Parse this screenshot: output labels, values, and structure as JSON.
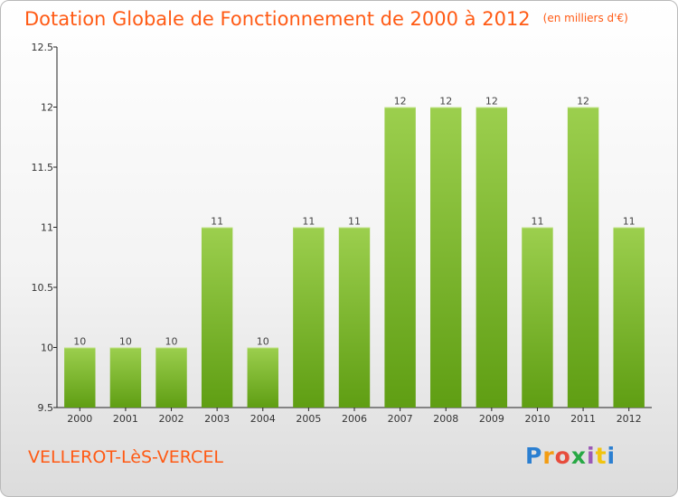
{
  "header": {
    "title": "Dotation Globale de Fonctionnement de 2000 à 2012",
    "unit": "(en milliers d'€)"
  },
  "footer": {
    "commune": "VELLEROT-LèS-VERCEL",
    "logo_text": "Proxiti"
  },
  "colors": {
    "bar_top": "#9ccf4e",
    "bar_bottom": "#5f9e13",
    "title": "#ff5a14"
  },
  "chart_data": {
    "type": "bar",
    "title": "Dotation Globale de Fonctionnement de 2000 à 2012",
    "xlabel": "",
    "ylabel": "",
    "categories": [
      "2000",
      "2001",
      "2002",
      "2003",
      "2004",
      "2005",
      "2006",
      "2007",
      "2008",
      "2009",
      "2010",
      "2011",
      "2012"
    ],
    "values": [
      10,
      10,
      10,
      11,
      10,
      11,
      11,
      12,
      12,
      12,
      11,
      12,
      11
    ],
    "ylim": [
      9.5,
      12.5
    ],
    "yticks": [
      9.5,
      10,
      10.5,
      11,
      11.5,
      12,
      12.5
    ],
    "ytick_labels": [
      "9.5",
      "10",
      "10.5",
      "11",
      "11.5",
      "12",
      "12.5"
    ],
    "grid": false,
    "legend": "none"
  }
}
